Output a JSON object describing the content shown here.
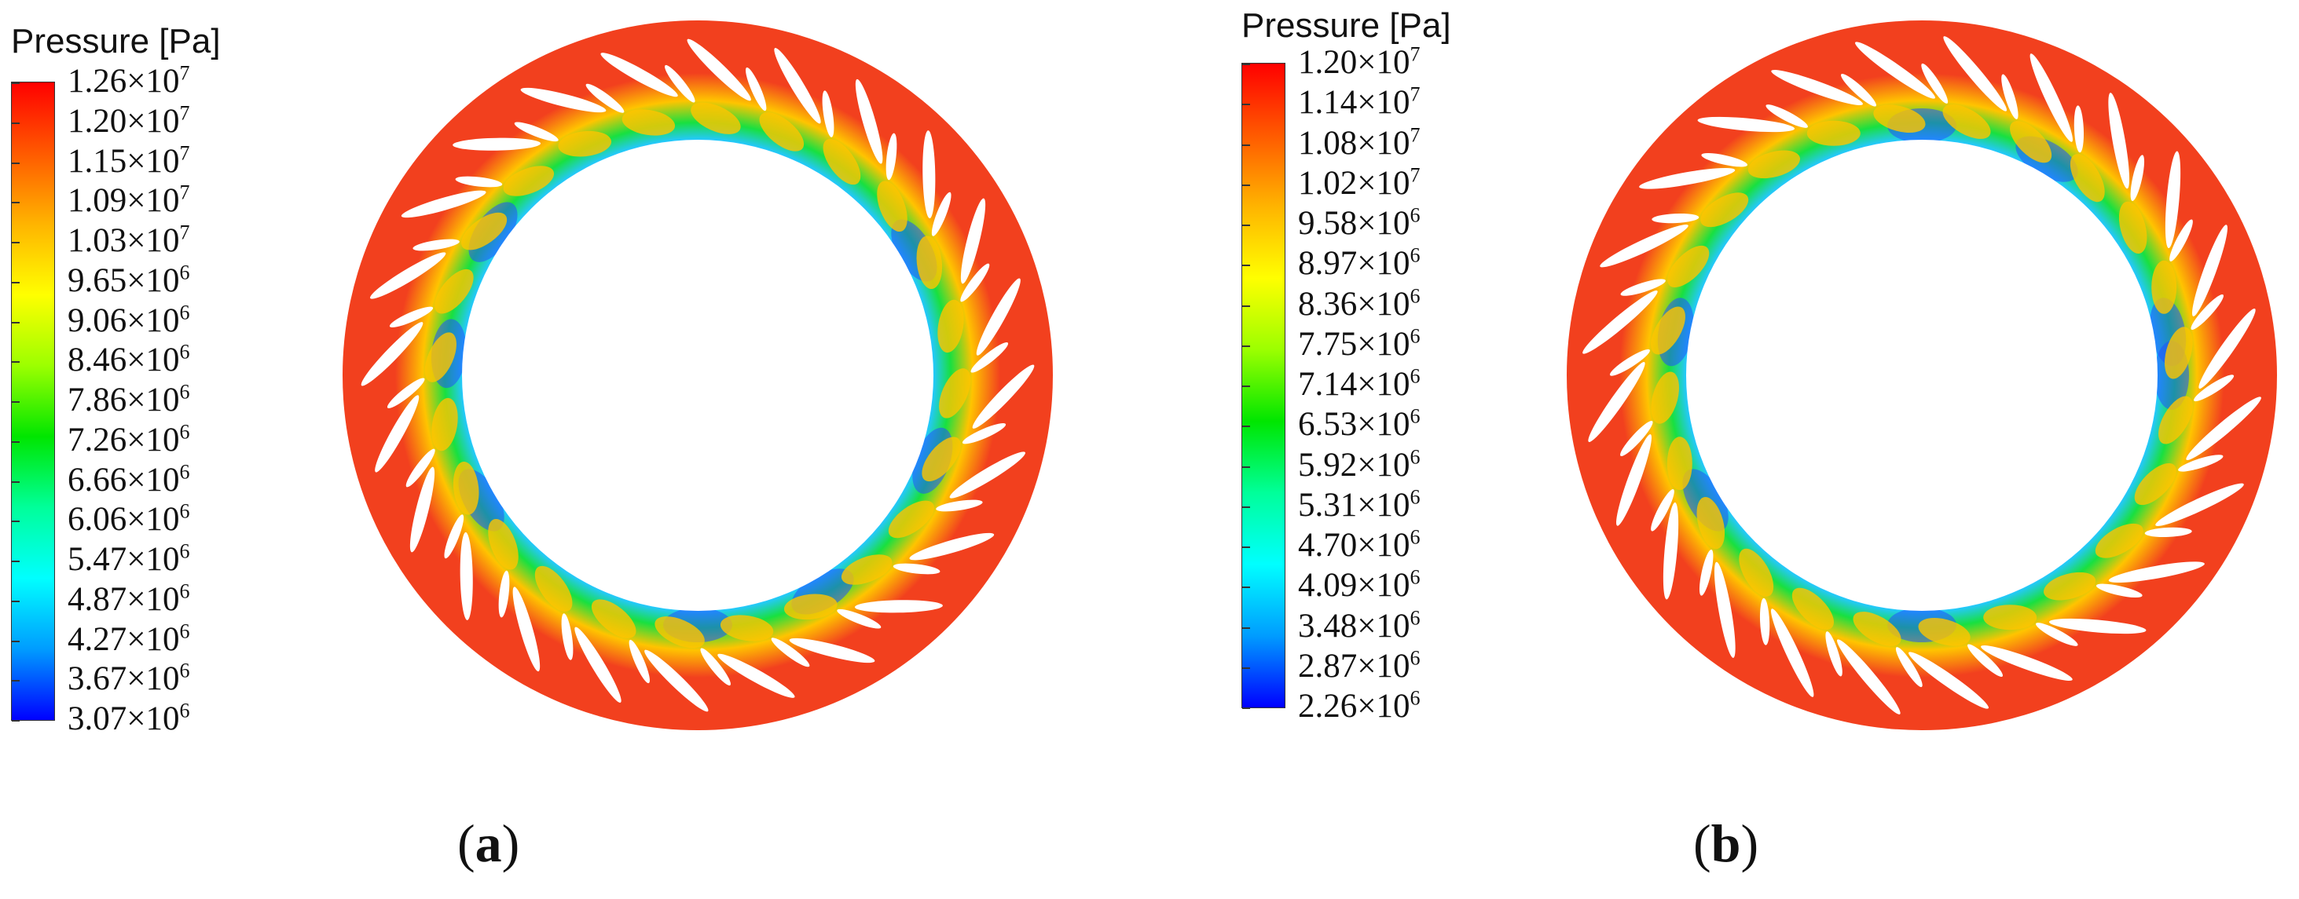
{
  "panels": [
    {
      "id": "a",
      "legend_title": "Pressure [Pa]",
      "ticks": [
        {
          "mant": "1.26×10",
          "exp": "7"
        },
        {
          "mant": "1.20×10",
          "exp": "7"
        },
        {
          "mant": "1.15×10",
          "exp": "7"
        },
        {
          "mant": "1.09×10",
          "exp": "7"
        },
        {
          "mant": "1.03×10",
          "exp": "7"
        },
        {
          "mant": "9.65×10",
          "exp": "6"
        },
        {
          "mant": "9.06×10",
          "exp": "6"
        },
        {
          "mant": "8.46×10",
          "exp": "6"
        },
        {
          "mant": "7.86×10",
          "exp": "6"
        },
        {
          "mant": "7.26×10",
          "exp": "6"
        },
        {
          "mant": "6.66×10",
          "exp": "6"
        },
        {
          "mant": "6.06×10",
          "exp": "6"
        },
        {
          "mant": "5.47×10",
          "exp": "6"
        },
        {
          "mant": "4.87×10",
          "exp": "6"
        },
        {
          "mant": "4.27×10",
          "exp": "6"
        },
        {
          "mant": "3.67×10",
          "exp": "6"
        },
        {
          "mant": "3.07×10",
          "exp": "6"
        }
      ],
      "caption_open": "(",
      "caption_letter": "a",
      "caption_close": ")"
    },
    {
      "id": "b",
      "legend_title": "Pressure [Pa]",
      "ticks": [
        {
          "mant": "1.20×10",
          "exp": "7"
        },
        {
          "mant": "1.14×10",
          "exp": "7"
        },
        {
          "mant": "1.08×10",
          "exp": "7"
        },
        {
          "mant": "1.02×10",
          "exp": "7"
        },
        {
          "mant": "9.58×10",
          "exp": "6"
        },
        {
          "mant": "8.97×10",
          "exp": "6"
        },
        {
          "mant": "8.36×10",
          "exp": "6"
        },
        {
          "mant": "7.75×10",
          "exp": "6"
        },
        {
          "mant": "7.14×10",
          "exp": "6"
        },
        {
          "mant": "6.53×10",
          "exp": "6"
        },
        {
          "mant": "5.92×10",
          "exp": "6"
        },
        {
          "mant": "5.31×10",
          "exp": "6"
        },
        {
          "mant": "4.70×10",
          "exp": "6"
        },
        {
          "mant": "4.09×10",
          "exp": "6"
        },
        {
          "mant": "3.48×10",
          "exp": "6"
        },
        {
          "mant": "2.87×10",
          "exp": "6"
        },
        {
          "mant": "2.26×10",
          "exp": "6"
        }
      ],
      "caption_open": "(",
      "caption_letter": "b",
      "caption_close": ")"
    }
  ],
  "colors": {
    "colorbar": [
      "#ff0000",
      "#ff5a00",
      "#ffb400",
      "#ffff00",
      "#9cff00",
      "#00e600",
      "#00ff9a",
      "#00ffff",
      "#009cff",
      "#0000ff"
    ],
    "outer_ring": "#f2401e",
    "inner_ring_high": "#ffc400",
    "inner_ring_mid": "#18e040",
    "inner_ring_low": "#24c8ff",
    "inner_ring_min": "#2050ff",
    "background": "#ffffff"
  }
}
